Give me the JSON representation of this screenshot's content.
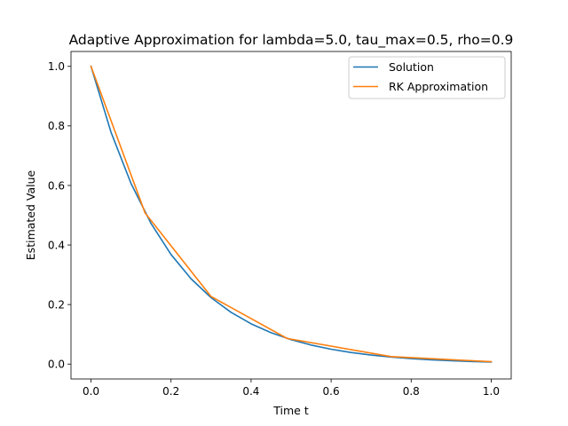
{
  "chart_data": {
    "type": "line",
    "title": "Adaptive Approximation for lambda=5.0, tau_max=0.5, rho=0.9",
    "xlabel": "Time t",
    "ylabel": "Estimated Value",
    "xlim": [
      -0.05,
      1.05
    ],
    "ylim": [
      -0.05,
      1.05
    ],
    "xticks": [
      0.0,
      0.2,
      0.4,
      0.6,
      0.8,
      1.0
    ],
    "yticks": [
      0.0,
      0.2,
      0.4,
      0.6,
      0.8,
      1.0
    ],
    "xtick_labels": [
      "0.0",
      "0.2",
      "0.4",
      "0.6",
      "0.8",
      "1.0"
    ],
    "ytick_labels": [
      "0.0",
      "0.2",
      "0.4",
      "0.6",
      "0.8",
      "1.0"
    ],
    "grid": false,
    "legend": "top-right",
    "series": [
      {
        "name": "Solution",
        "color": "#1f77b4",
        "x": [
          0.0,
          0.05,
          0.1,
          0.15,
          0.2,
          0.25,
          0.3,
          0.35,
          0.4,
          0.45,
          0.5,
          0.55,
          0.6,
          0.65,
          0.7,
          0.75,
          0.8,
          0.85,
          0.9,
          0.95,
          1.0
        ],
        "y": [
          1.0,
          0.7788,
          0.6065,
          0.4724,
          0.3679,
          0.2865,
          0.2231,
          0.1738,
          0.1353,
          0.1054,
          0.0821,
          0.0639,
          0.0498,
          0.0388,
          0.0302,
          0.0235,
          0.0183,
          0.0143,
          0.0111,
          0.0087,
          0.0067
        ]
      },
      {
        "name": "RK Approximation",
        "color": "#ff7f0e",
        "x": [
          0.0,
          0.135,
          0.3,
          0.49,
          0.75,
          1.0
        ],
        "y": [
          1.0,
          0.508,
          0.227,
          0.086,
          0.025,
          0.008
        ]
      }
    ]
  }
}
